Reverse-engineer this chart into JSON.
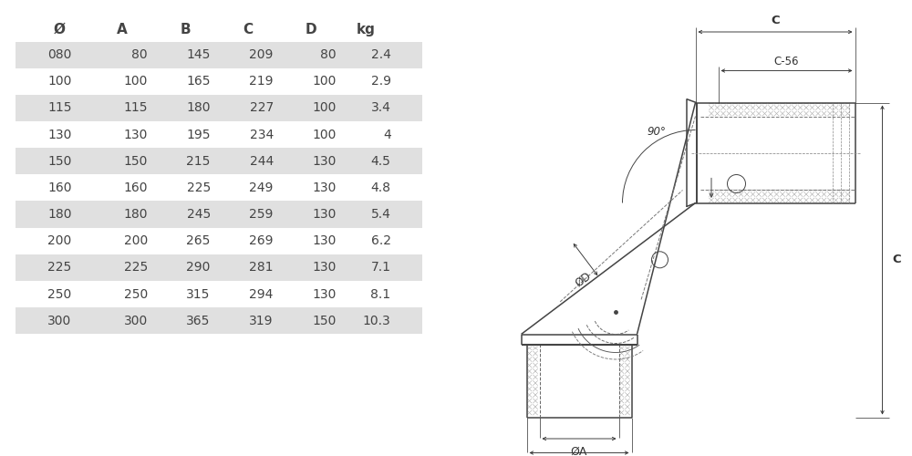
{
  "table_headers": [
    "Ø",
    "A",
    "B",
    "C",
    "D",
    "kg"
  ],
  "table_data": [
    [
      "080",
      "80",
      "145",
      "209",
      "80",
      "2.4"
    ],
    [
      "100",
      "100",
      "165",
      "219",
      "100",
      "2.9"
    ],
    [
      "115",
      "115",
      "180",
      "227",
      "100",
      "3.4"
    ],
    [
      "130",
      "130",
      "195",
      "234",
      "100",
      "4"
    ],
    [
      "150",
      "150",
      "215",
      "244",
      "130",
      "4.5"
    ],
    [
      "160",
      "160",
      "225",
      "249",
      "130",
      "4.8"
    ],
    [
      "180",
      "180",
      "245",
      "259",
      "130",
      "5.4"
    ],
    [
      "200",
      "200",
      "265",
      "269",
      "130",
      "6.2"
    ],
    [
      "225",
      "225",
      "290",
      "281",
      "130",
      "7.1"
    ],
    [
      "250",
      "250",
      "315",
      "294",
      "130",
      "8.1"
    ],
    [
      "300",
      "300",
      "365",
      "319",
      "150",
      "10.3"
    ]
  ],
  "shaded_rows": [
    0,
    2,
    4,
    6,
    8,
    10
  ],
  "row_bg_shaded": "#e0e0e0",
  "row_bg_white": "#ffffff",
  "text_color": "#444444",
  "line_color": "#444444",
  "dim_color": "#333333",
  "bg_color": "#ffffff"
}
